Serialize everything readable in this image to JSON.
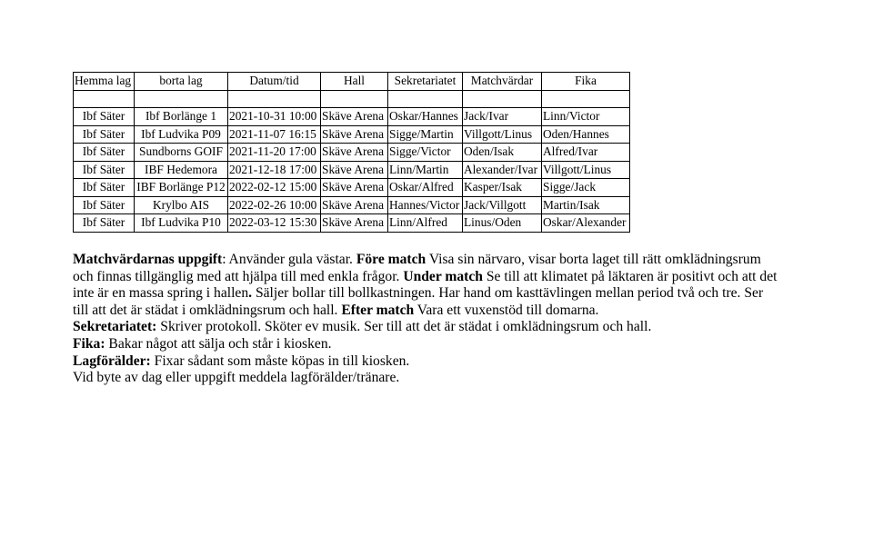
{
  "table": {
    "headers": [
      "Hemma lag",
      "borta lag",
      "Datum/tid",
      "Hall",
      "Sekretariatet",
      "Matchvärdar",
      "Fika"
    ],
    "rows": [
      [
        "",
        "",
        "",
        "",
        "",
        "",
        ""
      ],
      [
        "Ibf Säter",
        "Ibf Borlänge 1",
        "2021-10-31 10:00",
        "Skäve Arena",
        "Oskar/Hannes",
        "Jack/Ivar",
        "Linn/Victor"
      ],
      [
        "Ibf Säter",
        "Ibf Ludvika P09",
        "2021-11-07 16:15",
        "Skäve Arena",
        "Sigge/Martin",
        "Villgott/Linus",
        "Oden/Hannes"
      ],
      [
        "Ibf Säter",
        "Sundborns GOIF",
        "2021-11-20 17:00",
        "Skäve Arena",
        "Sigge/Victor",
        "Oden/Isak",
        "Alfred/Ivar"
      ],
      [
        "Ibf Säter",
        "IBF Hedemora",
        "2021-12-18 17:00",
        "Skäve Arena",
        "Linn/Martin",
        "Alexander/Ivar",
        "Villgott/Linus"
      ],
      [
        "Ibf Säter",
        "IBF Borlänge P12",
        "2022-02-12 15:00",
        "Skäve Arena",
        "Oskar/Alfred",
        "Kasper/Isak",
        "Sigge/Jack"
      ],
      [
        "Ibf Säter",
        "Krylbo AIS",
        "2022-02-26 10:00",
        "Skäve Arena",
        "Hannes/Victor",
        "Jack/Villgott",
        "Martin/Isak"
      ],
      [
        "Ibf Säter",
        "Ibf Ludvika P10",
        "2022-03-12 15:30",
        "Skäve Arena",
        "Linn/Alfred",
        "Linus/Oden",
        "Oskar/Alexander"
      ]
    ]
  },
  "text": {
    "l1a": "Matchvärdarnas uppgift",
    "l1b": ": Använder gula västar. ",
    "l1c": "Före match",
    "l1d": " Visa sin närvaro, visar borta laget till rätt omklädningsrum",
    "l2a": "och finnas tillgänglig med att hjälpa till med enkla frågor. ",
    "l2b": "Under match",
    "l2c": " Se till att klimatet på läktaren är positivt och att det",
    "l3a": "inte är en massa spring i hallen",
    "l3b": ".",
    "l3c": " Säljer bollar till bollkastningen. Har hand om kasttävlingen mellan period två och tre. Ser",
    "l4a": "till att det är städat i omklädningsrum och hall. ",
    "l4b": "Efter match",
    "l4c": " Vara ett vuxenstöd till domarna.",
    "l5a": "Sekretariatet:",
    "l5b": " Skriver protokoll. Sköter ev musik. Ser till att det är städat i omklädningsrum och hall.",
    "l6a": "Fika:",
    "l6b": " Bakar något att sälja och står i kiosken.",
    "l7a": "Lagförälder:",
    "l7b": " Fixar sådant som måste köpas in till kiosken.",
    "l8": "Vid byte av dag eller uppgift meddela lagförälder/tränare."
  }
}
